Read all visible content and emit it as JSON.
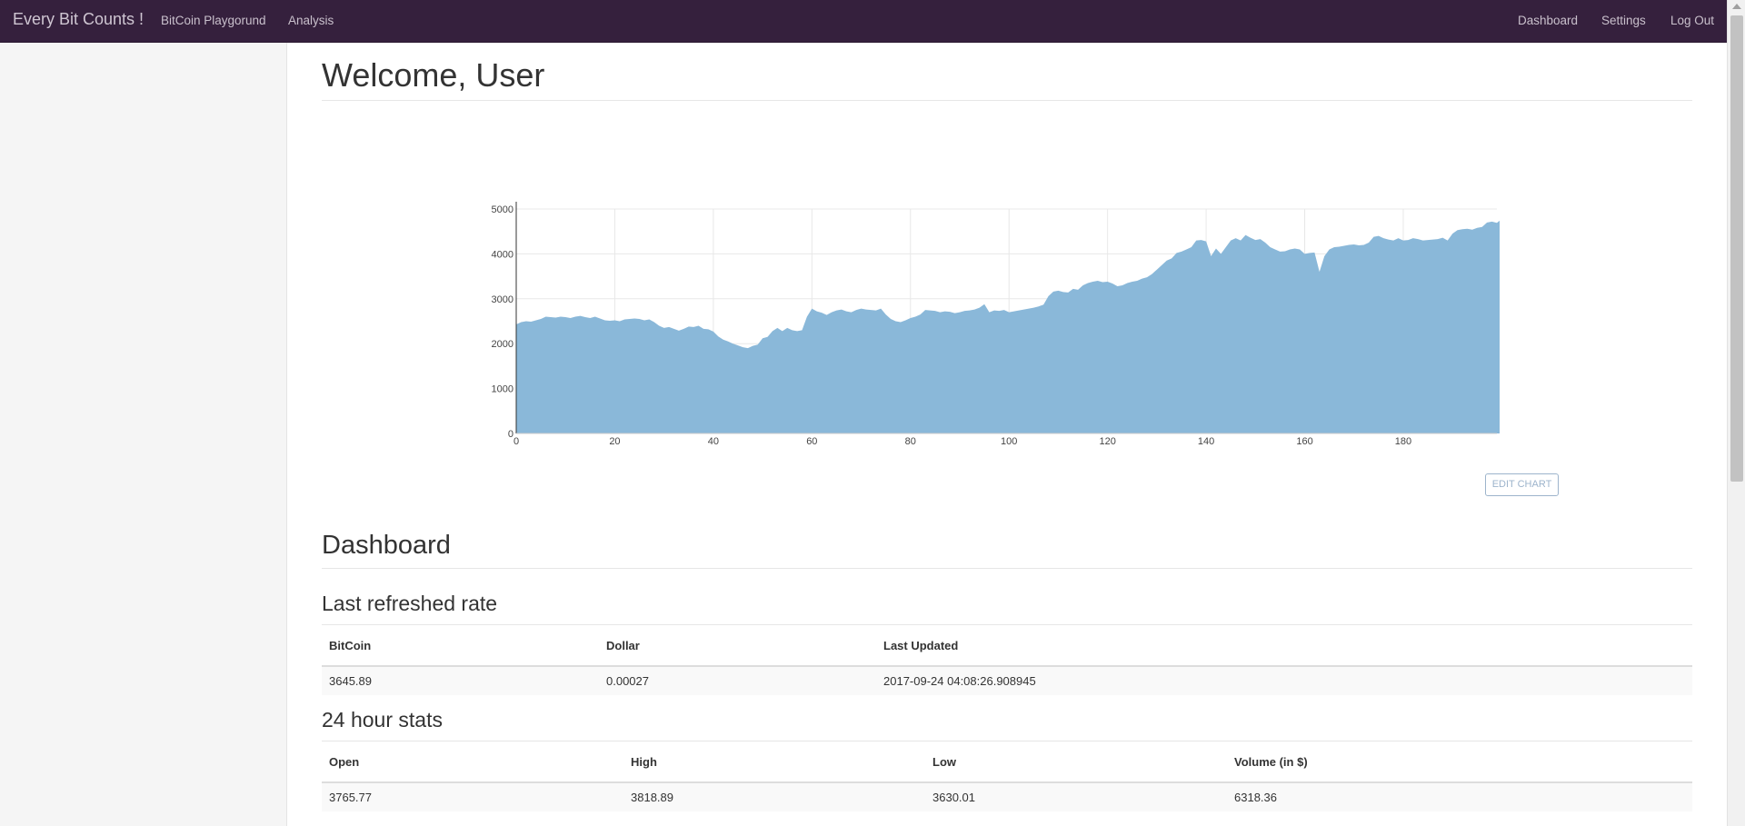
{
  "navbar": {
    "brand": "Every Bit Counts !",
    "left_links": [
      "BitCoin Playgorund",
      "Analysis"
    ],
    "right_links": [
      "Dashboard",
      "Settings",
      "Log Out"
    ]
  },
  "main": {
    "title": "Welcome, User",
    "edit_chart_label": "EDIT CHART",
    "dashboard_heading": "Dashboard",
    "last_refreshed": {
      "heading": "Last refreshed rate",
      "columns": [
        "BitCoin",
        "Dollar",
        "Last Updated"
      ],
      "row": [
        "3645.89",
        "0.00027",
        "2017-09-24 04:08:26.908945"
      ]
    },
    "stats_24h": {
      "heading": "24 hour stats",
      "columns": [
        "Open",
        "High",
        "Low",
        "Volume (in $)"
      ],
      "row": [
        "3765.77",
        "3818.89",
        "3630.01",
        "6318.36"
      ]
    }
  },
  "chart_data": {
    "type": "area",
    "color": "#8ab8d9",
    "xlim": [
      0,
      199
    ],
    "ylim": [
      0,
      5000
    ],
    "x_ticks": [
      0,
      20,
      40,
      60,
      80,
      100,
      120,
      140,
      160,
      180
    ],
    "y_ticks": [
      0,
      1000,
      2000,
      3000,
      4000,
      5000
    ],
    "grid": true,
    "values": [
      2430,
      2480,
      2500,
      2490,
      2520,
      2550,
      2600,
      2590,
      2580,
      2600,
      2590,
      2570,
      2600,
      2620,
      2590,
      2570,
      2600,
      2560,
      2520,
      2510,
      2520,
      2500,
      2540,
      2550,
      2560,
      2550,
      2520,
      2540,
      2480,
      2400,
      2350,
      2370,
      2330,
      2290,
      2330,
      2380,
      2370,
      2400,
      2330,
      2320,
      2270,
      2160,
      2090,
      2050,
      2000,
      1960,
      1920,
      1900,
      1950,
      1980,
      2120,
      2150,
      2280,
      2350,
      2280,
      2350,
      2300,
      2280,
      2300,
      2600,
      2780,
      2720,
      2690,
      2640,
      2700,
      2740,
      2760,
      2720,
      2700,
      2750,
      2780,
      2760,
      2750,
      2740,
      2780,
      2650,
      2550,
      2500,
      2480,
      2520,
      2570,
      2600,
      2650,
      2750,
      2740,
      2730,
      2700,
      2720,
      2710,
      2680,
      2700,
      2730,
      2740,
      2760,
      2800,
      2880,
      2700,
      2740,
      2730,
      2750,
      2700,
      2720,
      2740,
      2760,
      2780,
      2800,
      2830,
      2870,
      3060,
      3160,
      3180,
      3150,
      3140,
      3220,
      3200,
      3300,
      3350,
      3380,
      3400,
      3370,
      3380,
      3340,
      3280,
      3300,
      3350,
      3380,
      3400,
      3450,
      3480,
      3550,
      3650,
      3750,
      3850,
      3900,
      4020,
      4050,
      4100,
      4150,
      4300,
      4310,
      4280,
      3950,
      4120,
      4000,
      4150,
      4300,
      4350,
      4300,
      4420,
      4360,
      4310,
      4330,
      4250,
      4150,
      4100,
      4050,
      4060,
      4100,
      4120,
      4100,
      4000,
      4020,
      4030,
      3600,
      3950,
      4100,
      4150,
      4160,
      4180,
      4200,
      4210,
      4190,
      4200,
      4250,
      4380,
      4400,
      4350,
      4320,
      4300,
      4350,
      4300,
      4310,
      4350,
      4330,
      4300,
      4310,
      4320,
      4330,
      4360,
      4300,
      4450,
      4530,
      4550,
      4560,
      4540,
      4580,
      4600,
      4700,
      4720,
      4690,
      4780,
      4850,
      4870,
      4800
    ]
  }
}
